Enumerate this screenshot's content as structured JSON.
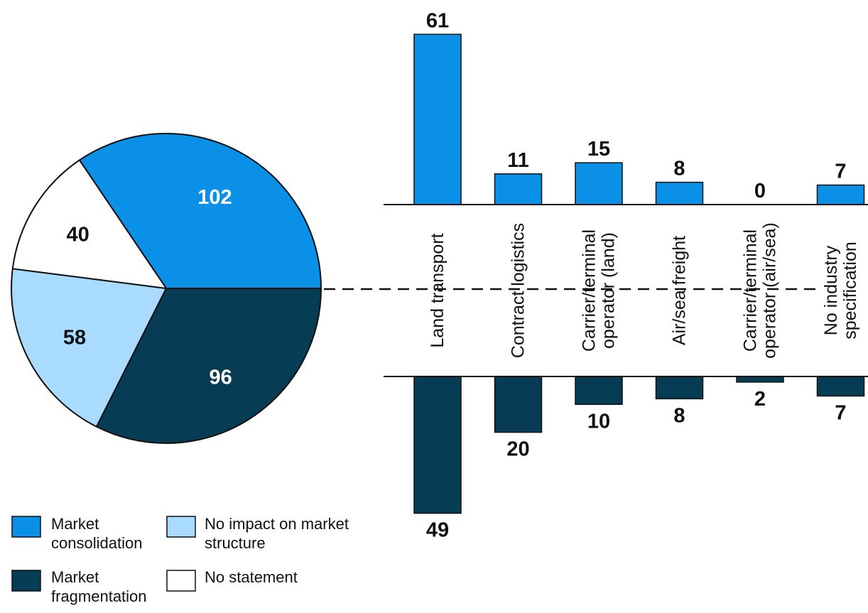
{
  "colors": {
    "consolidation": "#0b90e8",
    "fragmentation": "#063d55",
    "no_impact": "#a9dbff",
    "no_statement": "#ffffff"
  },
  "chart_data": [
    {
      "type": "pie",
      "slices": [
        {
          "key": "consolidation",
          "name": "Market consolidation",
          "value": 102,
          "label": "102"
        },
        {
          "key": "fragmentation",
          "name": "Market fragmentation",
          "value": 96,
          "label": "96"
        },
        {
          "key": "no_impact",
          "name": "No impact on market structure",
          "value": 58,
          "label": "58"
        },
        {
          "key": "no_statement",
          "name": "No statement",
          "value": 40,
          "label": "40"
        }
      ]
    },
    {
      "type": "bar",
      "categories": [
        [
          "Land transport"
        ],
        [
          "Contract logistics"
        ],
        [
          "Carrier/terminal",
          "operator (land)"
        ],
        [
          "Air/sea freight"
        ],
        [
          "Carrier/terminal",
          "operator (air/sea)"
        ],
        [
          "No industry",
          "specification"
        ]
      ],
      "series": [
        {
          "key": "consolidation",
          "name": "Market consolidation",
          "direction": "up",
          "values": [
            61,
            11,
            15,
            8,
            0,
            7
          ]
        },
        {
          "key": "fragmentation",
          "name": "Market fragmentation",
          "direction": "down",
          "values": [
            49,
            20,
            10,
            8,
            2,
            7
          ]
        }
      ]
    }
  ],
  "legend": [
    {
      "key": "consolidation",
      "lines": [
        "Market",
        "consolidation"
      ]
    },
    {
      "key": "no_impact",
      "lines": [
        "No impact on market",
        "structure"
      ]
    },
    {
      "key": "fragmentation",
      "lines": [
        "Market",
        "fragmentation"
      ]
    },
    {
      "key": "no_statement",
      "lines": [
        "No statement"
      ]
    }
  ]
}
